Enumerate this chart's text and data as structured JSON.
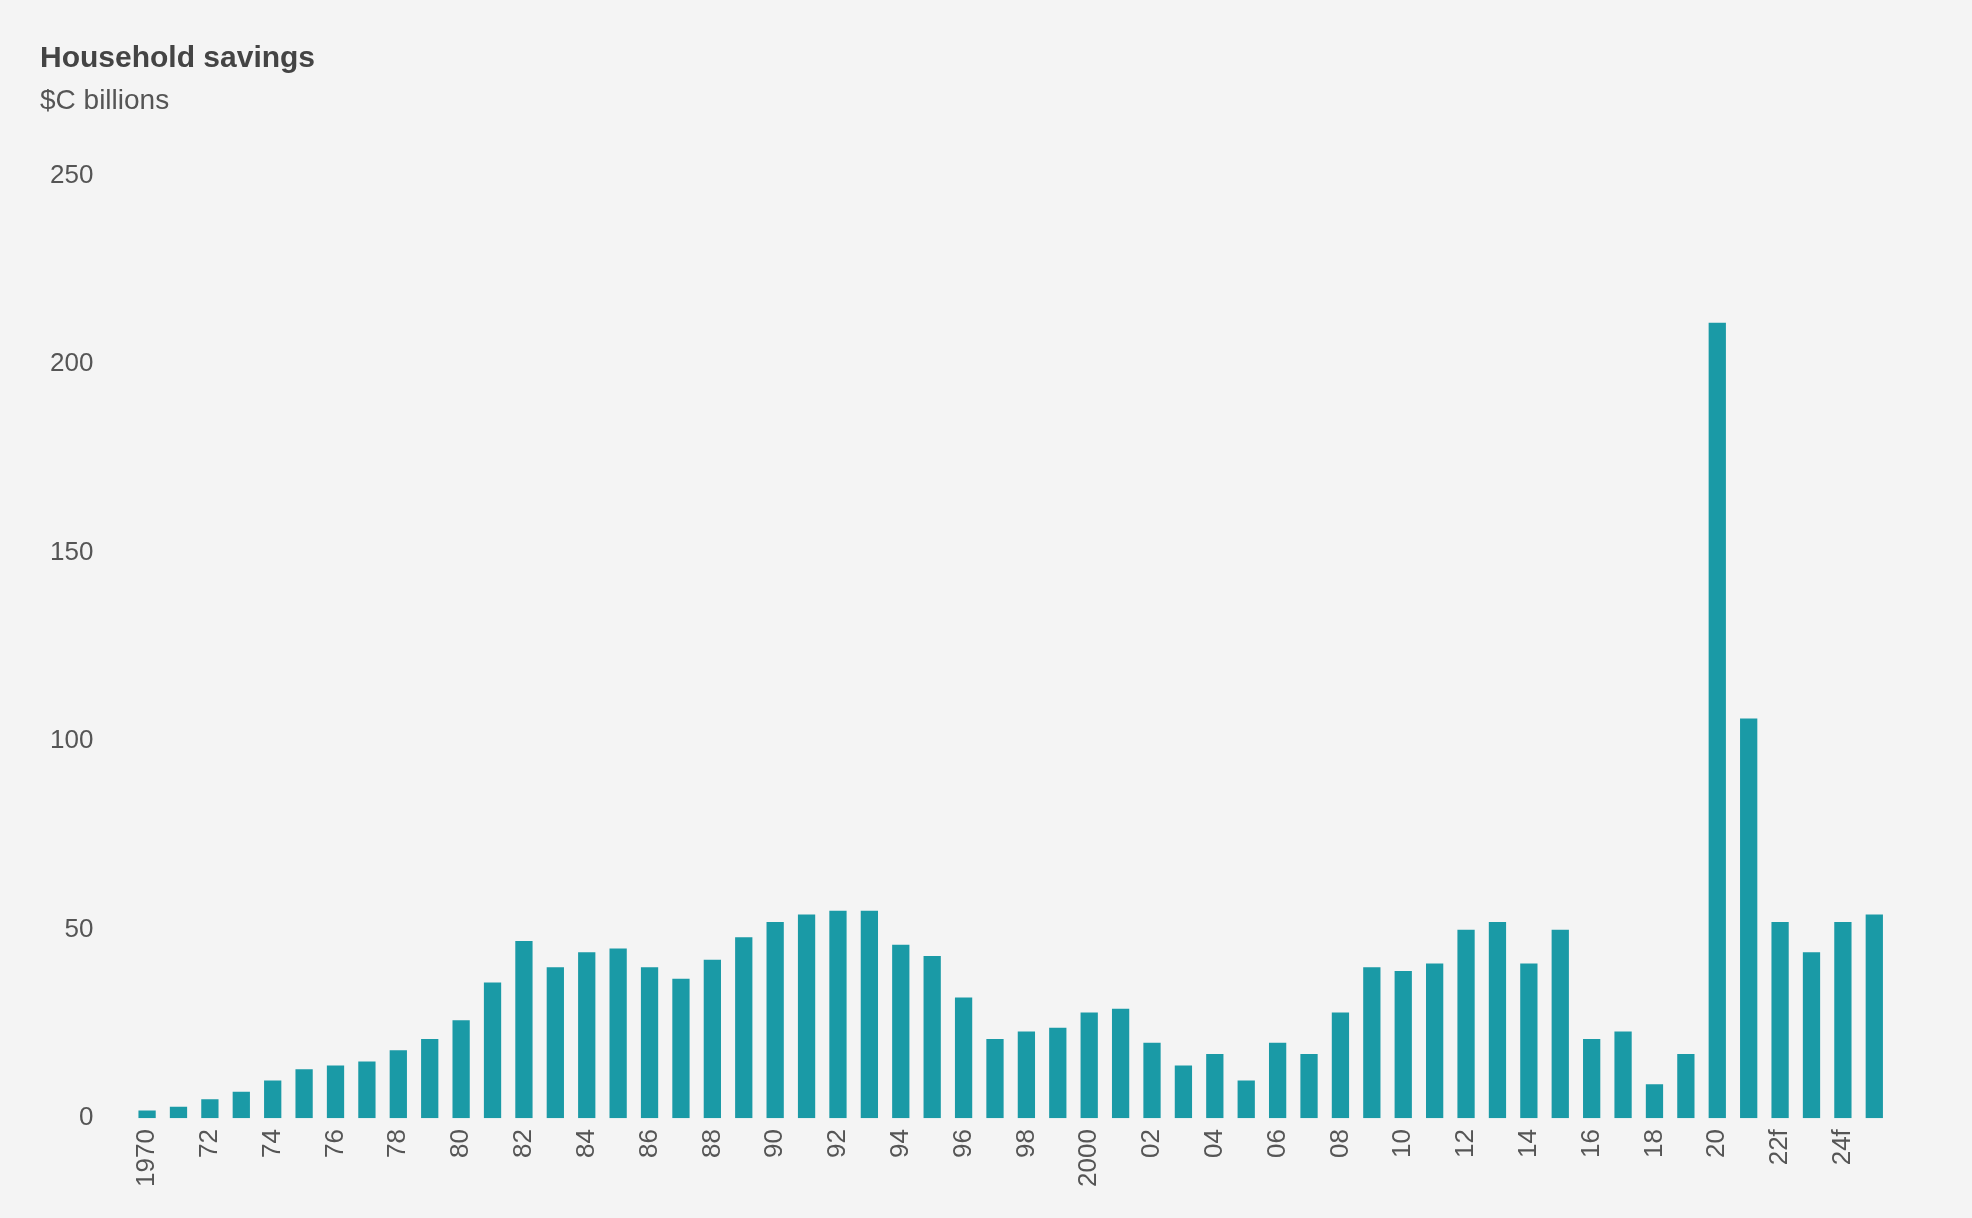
{
  "chart_data": {
    "type": "bar",
    "title": "Household savings",
    "subtitle": "$C billions",
    "categories": [
      "1970",
      null,
      "72",
      null,
      "74",
      null,
      "76",
      null,
      "78",
      null,
      "80",
      null,
      "82",
      null,
      "84",
      null,
      "86",
      null,
      "88",
      null,
      "90",
      null,
      "92",
      null,
      "94",
      null,
      "96",
      null,
      "98",
      null,
      "2000",
      null,
      "02",
      null,
      "04",
      null,
      "06",
      null,
      "08",
      null,
      "10",
      null,
      "12",
      null,
      "14",
      null,
      "16",
      null,
      "18",
      null,
      "20",
      null,
      "22f",
      null,
      "24f",
      null
    ],
    "values": [
      2,
      3,
      5,
      7,
      10,
      13,
      14,
      15,
      18,
      21,
      26,
      36,
      47,
      40,
      44,
      45,
      40,
      37,
      42,
      48,
      52,
      54,
      55,
      55,
      46,
      43,
      32,
      21,
      23,
      24,
      28,
      29,
      20,
      14,
      17,
      10,
      20,
      17,
      28,
      40,
      39,
      41,
      50,
      52,
      41,
      50,
      21,
      23,
      9,
      17,
      211,
      106,
      52,
      44,
      52,
      54
    ],
    "color": "#1a9aa6",
    "ylim": [
      0,
      250
    ],
    "yticks": [
      0,
      50,
      100,
      150,
      200,
      250
    ],
    "grid": false,
    "legend": false
  }
}
